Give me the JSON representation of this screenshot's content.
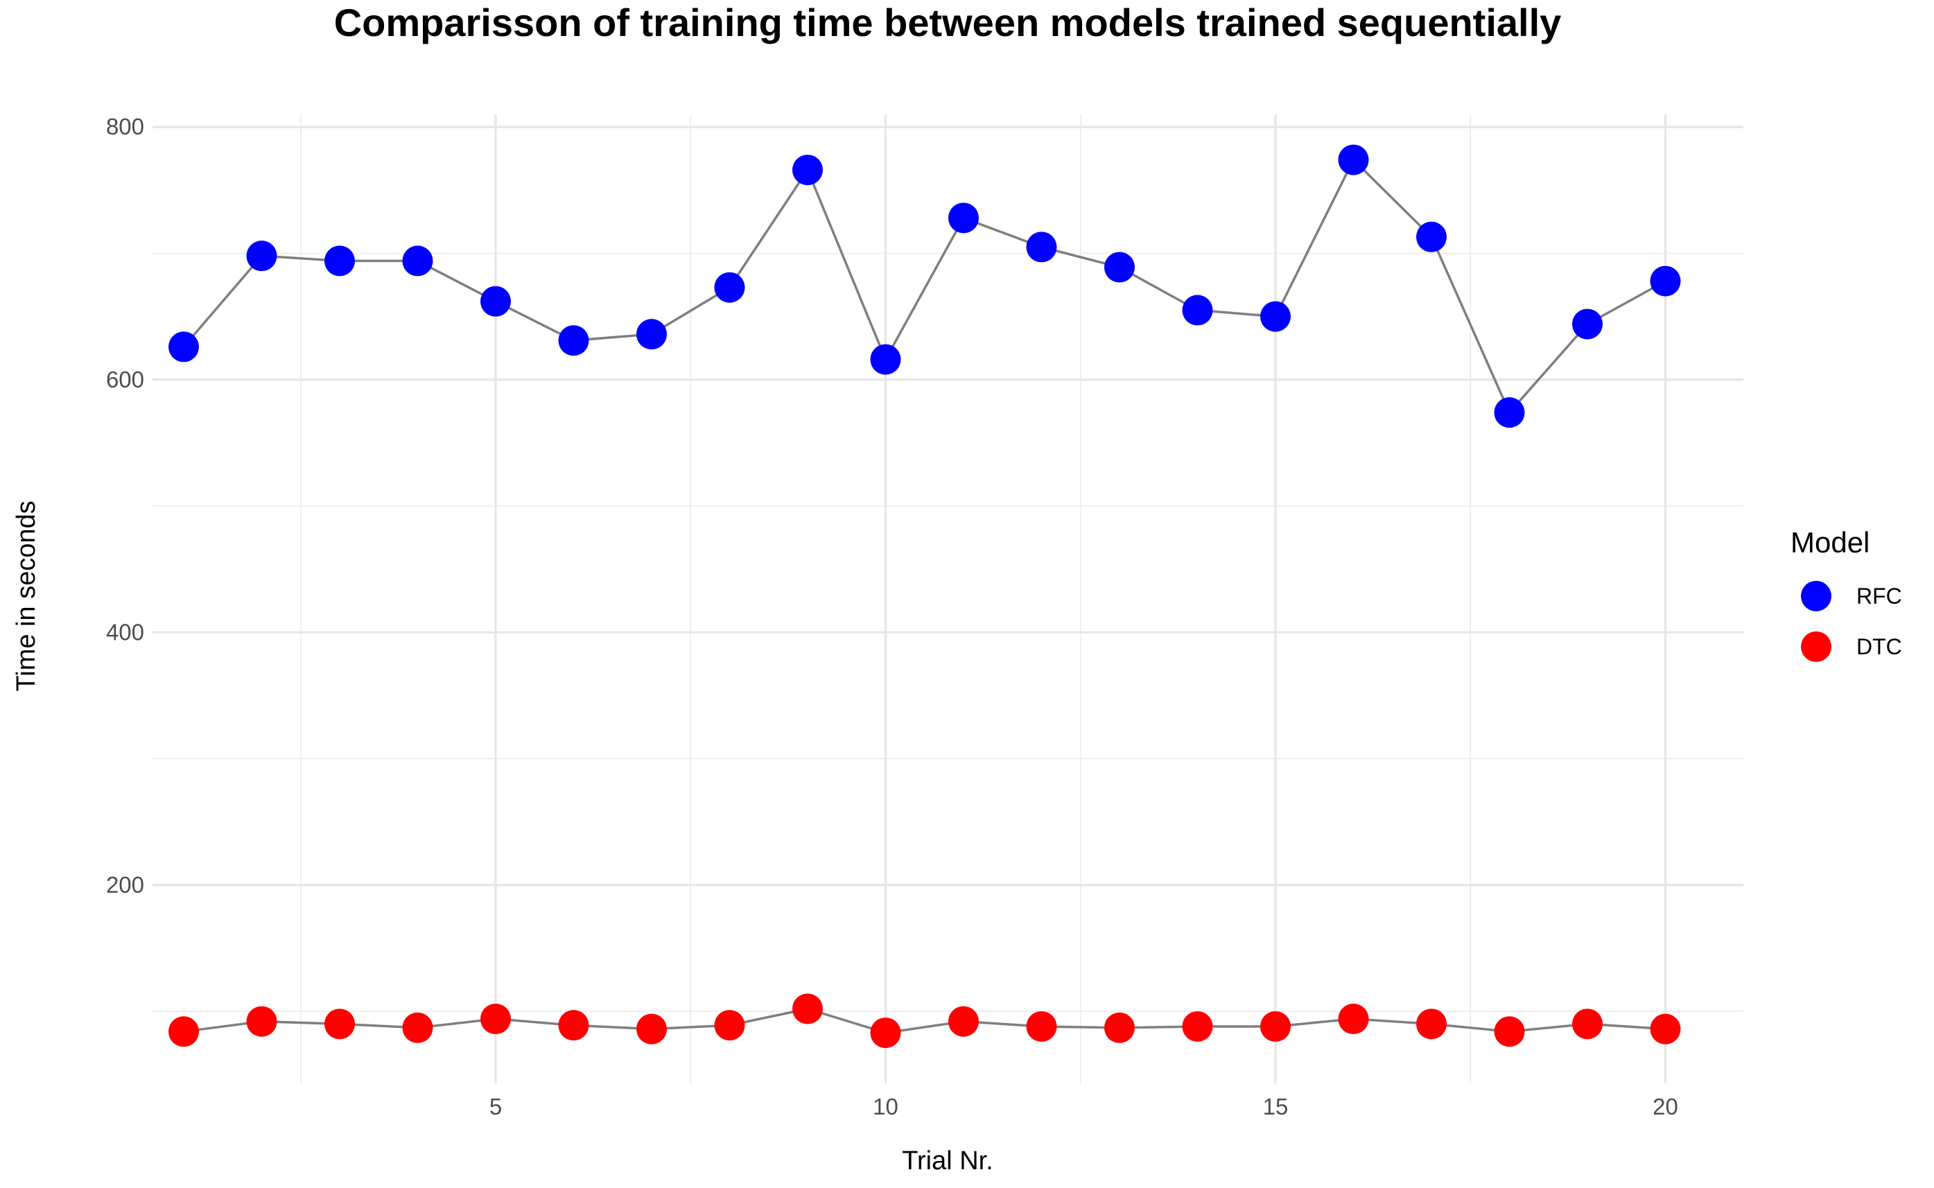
{
  "chart_data": {
    "type": "line",
    "title": "Comparisson of training time between models trained sequentially",
    "xlabel": "Trial Nr.",
    "ylabel": "Time in seconds",
    "x": [
      1,
      2,
      3,
      4,
      5,
      6,
      7,
      8,
      9,
      10,
      11,
      12,
      13,
      14,
      15,
      16,
      17,
      18,
      19,
      20
    ],
    "xlim": [
      0.6,
      21
    ],
    "ylim": [
      43,
      810
    ],
    "x_ticks": [
      5,
      10,
      15,
      20
    ],
    "y_ticks": [
      200,
      400,
      600,
      800
    ],
    "grid": true,
    "legend": {
      "title": "Model",
      "position": "right"
    },
    "series": [
      {
        "name": "RFC",
        "color": "#0000ff",
        "values": [
          626,
          698,
          694,
          694,
          662,
          631,
          636,
          673,
          766,
          616,
          728,
          705,
          689,
          655,
          650,
          774,
          713,
          574,
          644,
          678
        ]
      },
      {
        "name": "DTC",
        "color": "#ff0000",
        "values": [
          84,
          92,
          90,
          87,
          94,
          89,
          86,
          89,
          102,
          83,
          92,
          88,
          87,
          88,
          88,
          94,
          90,
          84,
          90,
          86
        ]
      }
    ],
    "line_color": "#7f7f7f"
  }
}
